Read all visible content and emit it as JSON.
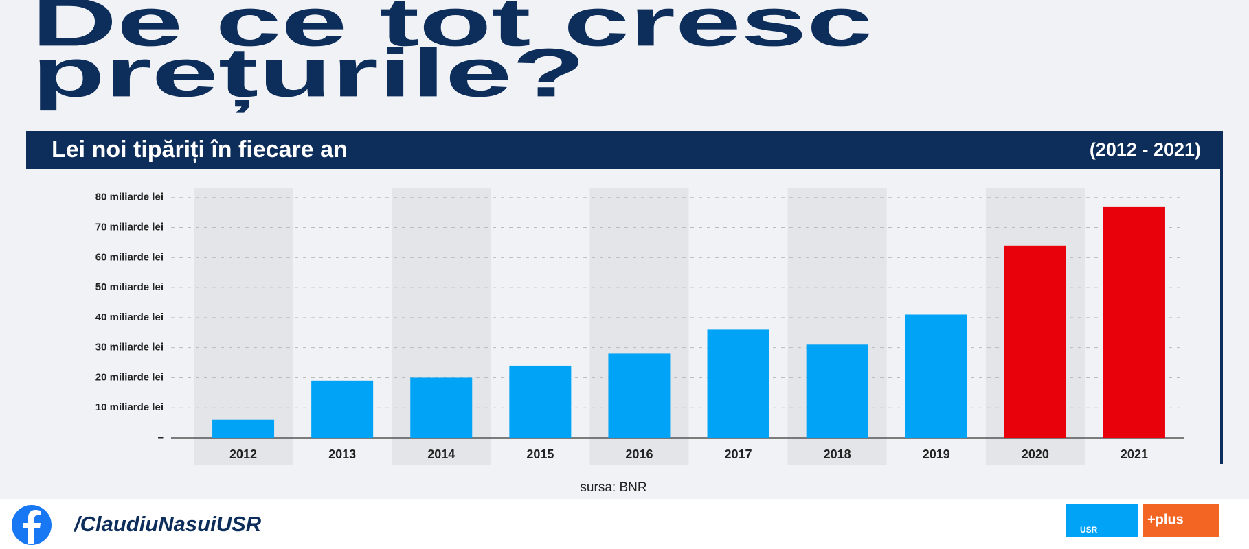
{
  "header": {
    "title_lines": [
      "De ce tot cresc",
      "prețurile?"
    ]
  },
  "chart_data": {
    "type": "bar",
    "title": "Lei noi tipăriți în fiecare an",
    "subtitle": "(2012 - 2021)",
    "categories": [
      "2012",
      "2013",
      "2014",
      "2015",
      "2016",
      "2017",
      "2018",
      "2019",
      "2020",
      "2021"
    ],
    "values": [
      6,
      19,
      20,
      24,
      28,
      36,
      31,
      41,
      64,
      77
    ],
    "colors": [
      "#00a3f5",
      "#00a3f5",
      "#00a3f5",
      "#00a3f5",
      "#00a3f5",
      "#00a3f5",
      "#00a3f5",
      "#00a3f5",
      "#e8000b",
      "#e8000b"
    ],
    "ylim": [
      0,
      82
    ],
    "yticks": [
      {
        "value": 0,
        "label": "–"
      },
      {
        "value": 10,
        "label": "10 miliarde lei"
      },
      {
        "value": 20,
        "label": "20 miliarde lei"
      },
      {
        "value": 30,
        "label": "30 miliarde lei"
      },
      {
        "value": 40,
        "label": "40 miliarde lei"
      },
      {
        "value": 50,
        "label": "50 miliarde lei"
      },
      {
        "value": 60,
        "label": "60 miliarde lei"
      },
      {
        "value": 70,
        "label": "70 miliarde lei"
      },
      {
        "value": 80,
        "label": "80 miliarde lei"
      }
    ],
    "grid": true,
    "source": "sursa: BNR"
  },
  "footer": {
    "handle": "/ClaudiuNasuiUSR",
    "logos": [
      "USR",
      "+plus"
    ]
  }
}
